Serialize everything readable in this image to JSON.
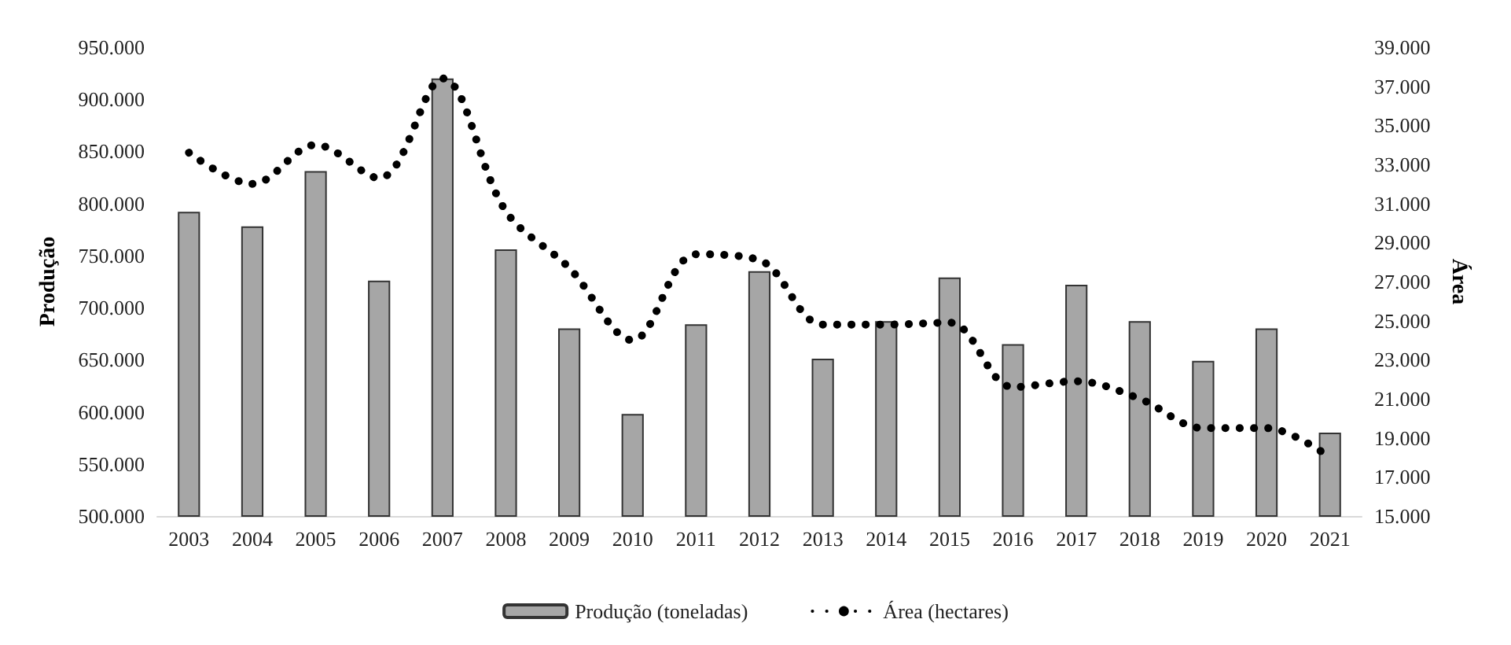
{
  "chart_data": {
    "type": "bar",
    "ylabel": "Produção",
    "y2label": "Área",
    "categories": [
      "2003",
      "2004",
      "2005",
      "2006",
      "2007",
      "2008",
      "2009",
      "2010",
      "2011",
      "2012",
      "2013",
      "2014",
      "2015",
      "2016",
      "2017",
      "2018",
      "2019",
      "2020",
      "2021"
    ],
    "series": [
      {
        "name": "Produção (toneladas)",
        "color": "#a6a6a6",
        "values": [
          792000,
          778000,
          831000,
          726000,
          920000,
          756000,
          680000,
          598000,
          684000,
          735000,
          651000,
          687000,
          729000,
          665000,
          722000,
          687000,
          649000,
          680000,
          580000
        ]
      },
      {
        "name": "Área (hectares)",
        "type": "line",
        "axis": "y2",
        "color": "#000000",
        "line_style": "dotted",
        "marker": "none",
        "values": [
          33600,
          32000,
          34000,
          32300,
          37400,
          30600,
          27700,
          24000,
          28400,
          28100,
          24800,
          24800,
          24900,
          21600,
          21900,
          21000,
          19500,
          19500,
          18000
        ]
      }
    ],
    "ylim": [
      500000,
      950000
    ],
    "yticks": [
      {
        "value": 500000,
        "label": "500.000"
      },
      {
        "value": 550000,
        "label": "550.000"
      },
      {
        "value": 600000,
        "label": "600.000"
      },
      {
        "value": 650000,
        "label": "650.000"
      },
      {
        "value": 700000,
        "label": "700.000"
      },
      {
        "value": 750000,
        "label": "750.000"
      },
      {
        "value": 800000,
        "label": "800.000"
      },
      {
        "value": 850000,
        "label": "850.000"
      },
      {
        "value": 900000,
        "label": "900.000"
      },
      {
        "value": 950000,
        "label": "950.000"
      }
    ],
    "y2lim": [
      15000,
      39000
    ],
    "y2ticks": [
      {
        "value": 15000,
        "label": "15.000"
      },
      {
        "value": 17000,
        "label": "17.000"
      },
      {
        "value": 19000,
        "label": "19.000"
      },
      {
        "value": 21000,
        "label": "21.000"
      },
      {
        "value": 23000,
        "label": "23.000"
      },
      {
        "value": 25000,
        "label": "25.000"
      },
      {
        "value": 27000,
        "label": "27.000"
      },
      {
        "value": 29000,
        "label": "29.000"
      },
      {
        "value": 31000,
        "label": "31.000"
      },
      {
        "value": 33000,
        "label": "33.000"
      },
      {
        "value": 35000,
        "label": "35.000"
      },
      {
        "value": 37000,
        "label": "37.000"
      },
      {
        "value": 39000,
        "label": "39.000"
      }
    ],
    "grid": false,
    "legend": "bottom"
  }
}
